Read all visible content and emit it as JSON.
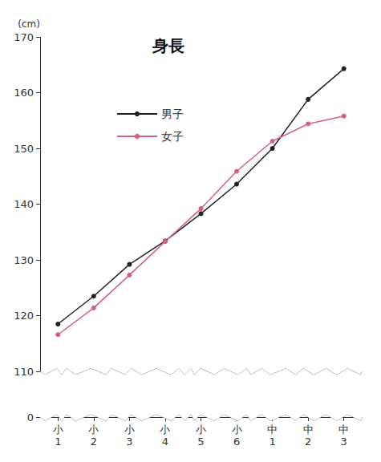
{
  "chart_data": {
    "type": "line",
    "title": "身長",
    "y_label": "(cm)",
    "categories": [
      "小1",
      "小2",
      "小3",
      "小4",
      "小5",
      "小6",
      "中1",
      "中2",
      "中3"
    ],
    "series": [
      {
        "name": "男子",
        "color": "#222222",
        "marker": "circle",
        "values": [
          118.5,
          123.5,
          129.2,
          133.4,
          138.3,
          143.6,
          150.0,
          158.8,
          164.3
        ]
      },
      {
        "name": "女子",
        "color": "#d4607a",
        "marker": "circle",
        "values": [
          116.6,
          121.4,
          127.3,
          133.3,
          139.2,
          145.9,
          151.3,
          154.4,
          155.8
        ]
      }
    ],
    "ylim": [
      0,
      170
    ],
    "yticks": [
      0,
      110,
      120,
      130,
      140,
      150,
      160,
      170
    ],
    "grid": false,
    "legend": "top"
  }
}
